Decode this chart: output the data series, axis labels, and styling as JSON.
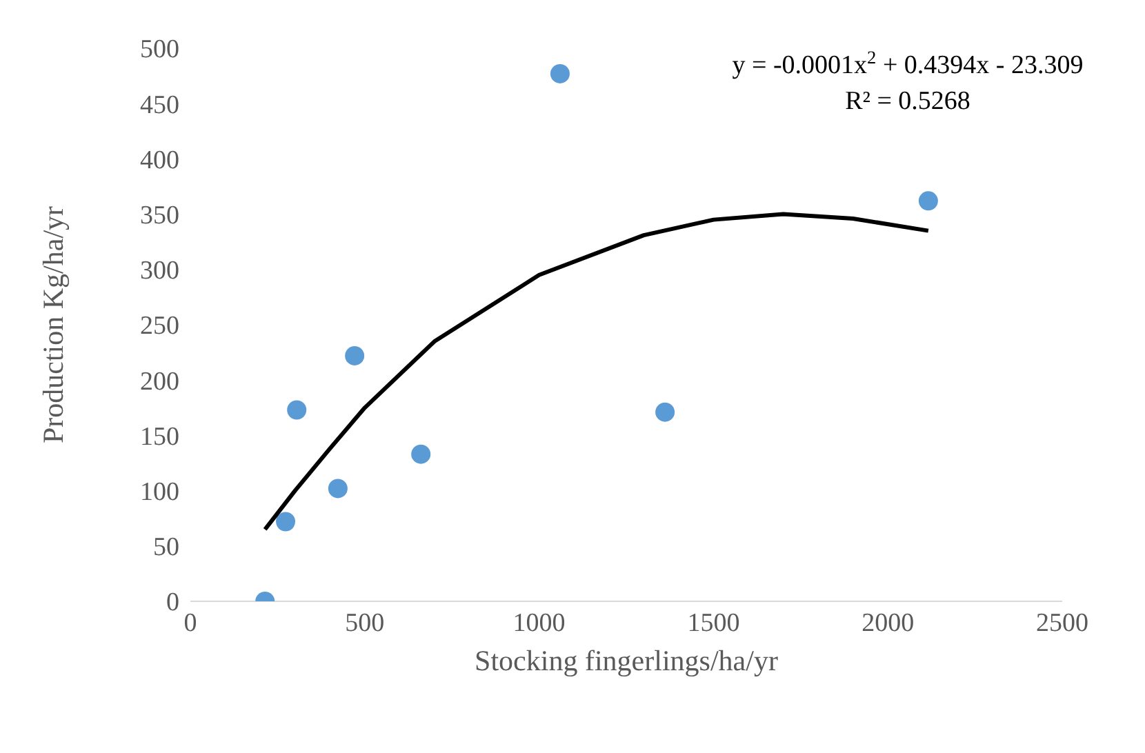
{
  "chart_data": {
    "type": "scatter",
    "xlabel": "Stocking fingerlings/ha/yr",
    "ylabel": "Production Kg/ha/yr",
    "xlim": [
      0,
      2500
    ],
    "xticks": [
      0,
      500,
      1000,
      1500,
      2000,
      2500
    ],
    "ylim": [
      0,
      500
    ],
    "yticks": [
      0,
      50,
      100,
      150,
      200,
      250,
      300,
      350,
      400,
      450,
      500
    ],
    "annotations": [
      "y = -0.0001x$^{2}$ + 0.4394x - 23.309",
      "R² = 0.5268"
    ],
    "series": [
      {
        "type": "scatter",
        "color": "#5b9bd5",
        "x": [
          214,
          273,
          305,
          423,
          471,
          661,
          1060,
          1361,
          2116
        ],
        "values": [
          0,
          72,
          173,
          102,
          222,
          133,
          477,
          171,
          362
        ]
      },
      {
        "type": "line",
        "color": "#000000",
        "x": [
          214,
          300,
          400,
          500,
          700,
          1000,
          1300,
          1500,
          1700,
          1900,
          2116
        ],
        "values": [
          65,
          100,
          138,
          175,
          235,
          295,
          331,
          345,
          350,
          346,
          335
        ]
      }
    ]
  }
}
